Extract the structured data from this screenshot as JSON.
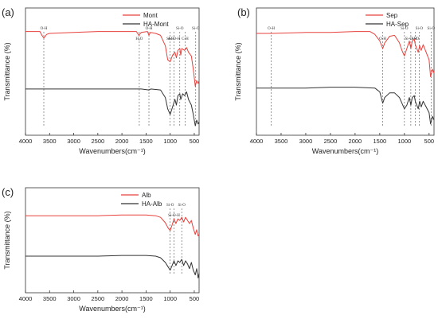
{
  "chart_data": [
    {
      "type": "line",
      "panel_label": "(a)",
      "xlabel": "Wavenumbers(cm⁻¹)",
      "ylabel": "Transmittance (%)",
      "xlim": [
        4000,
        400
      ],
      "x_ticks": [
        4000,
        3500,
        3000,
        2500,
        2000,
        1500,
        1000,
        500
      ],
      "legend_position": "top-right",
      "y_scale": "arbitrary (no tick labels)",
      "series": [
        {
          "name": "Mont",
          "color": "#e8413c",
          "points": [
            [
              4000,
              70
            ],
            [
              3700,
              70
            ],
            [
              3660,
              66
            ],
            [
              3620,
              63
            ],
            [
              3560,
              67
            ],
            [
              3500,
              68
            ],
            [
              3000,
              69
            ],
            [
              2500,
              70
            ],
            [
              2000,
              70
            ],
            [
              1700,
              70
            ],
            [
              1650,
              66
            ],
            [
              1600,
              69
            ],
            [
              1470,
              70
            ],
            [
              1440,
              66
            ],
            [
              1410,
              69
            ],
            [
              1300,
              68
            ],
            [
              1200,
              66
            ],
            [
              1100,
              55
            ],
            [
              1050,
              40
            ],
            [
              1000,
              38
            ],
            [
              950,
              45
            ],
            [
              900,
              48
            ],
            [
              870,
              42
            ],
            [
              840,
              50
            ],
            [
              800,
              52
            ],
            [
              780,
              45
            ],
            [
              760,
              52
            ],
            [
              700,
              50
            ],
            [
              660,
              53
            ],
            [
              620,
              48
            ],
            [
              560,
              44
            ],
            [
              520,
              30
            ],
            [
              480,
              12
            ],
            [
              450,
              18
            ],
            [
              420,
              15
            ],
            [
              400,
              18
            ]
          ]
        },
        {
          "name": "HA-Mont",
          "color": "#333333",
          "points": [
            [
              4000,
              9
            ],
            [
              3500,
              9
            ],
            [
              3000,
              9
            ],
            [
              2500,
              9
            ],
            [
              2000,
              9
            ],
            [
              1650,
              9
            ],
            [
              1600,
              9
            ],
            [
              1440,
              8
            ],
            [
              1400,
              9
            ],
            [
              1200,
              8
            ],
            [
              1100,
              0
            ],
            [
              1050,
              -12
            ],
            [
              1000,
              -18
            ],
            [
              950,
              -10
            ],
            [
              900,
              -2
            ],
            [
              870,
              -8
            ],
            [
              840,
              2
            ],
            [
              800,
              4
            ],
            [
              780,
              -2
            ],
            [
              740,
              4
            ],
            [
              700,
              2
            ],
            [
              660,
              6
            ],
            [
              620,
              -2
            ],
            [
              560,
              -8
            ],
            [
              520,
              -18
            ],
            [
              480,
              -30
            ],
            [
              450,
              -24
            ],
            [
              420,
              -28
            ],
            [
              400,
              -26
            ]
          ]
        }
      ],
      "annotations": [
        {
          "text": "O-H",
          "x": 3620
        },
        {
          "text": "H₂O",
          "x": 1640
        },
        {
          "text": "O-H",
          "x": 1440
        },
        {
          "text": "Si-O",
          "x": 1000
        },
        {
          "text": "Si-O",
          "x": 800
        },
        {
          "text": "C-H",
          "x": 690
        },
        {
          "text": "Si-O",
          "x": 470
        },
        {
          "text": "Al-O-H",
          "x": 920
        }
      ]
    },
    {
      "type": "line",
      "panel_label": "(b)",
      "xlabel": "Wavenumbers(cm⁻¹)",
      "ylabel": "Transmittance (%)",
      "xlim": [
        4000,
        400
      ],
      "x_ticks": [
        4000,
        3500,
        3000,
        2500,
        2000,
        1500,
        1000,
        500
      ],
      "legend_position": "top-right",
      "y_scale": "arbitrary (no tick labels)",
      "series": [
        {
          "name": "Sep",
          "color": "#e8413c",
          "points": [
            [
              4000,
              68
            ],
            [
              3700,
              68
            ],
            [
              3000,
              69
            ],
            [
              2500,
              69
            ],
            [
              2000,
              70
            ],
            [
              1700,
              70
            ],
            [
              1600,
              67
            ],
            [
              1500,
              60
            ],
            [
              1440,
              52
            ],
            [
              1400,
              58
            ],
            [
              1300,
              65
            ],
            [
              1200,
              66
            ],
            [
              1100,
              58
            ],
            [
              1050,
              50
            ],
            [
              1000,
              44
            ],
            [
              950,
              52
            ],
            [
              900,
              60
            ],
            [
              870,
              52
            ],
            [
              840,
              60
            ],
            [
              800,
              62
            ],
            [
              780,
              56
            ],
            [
              720,
              48
            ],
            [
              690,
              55
            ],
            [
              660,
              50
            ],
            [
              620,
              56
            ],
            [
              560,
              48
            ],
            [
              500,
              40
            ],
            [
              470,
              22
            ],
            [
              430,
              30
            ],
            [
              400,
              26
            ]
          ]
        },
        {
          "name": "HA-Sep",
          "color": "#333333",
          "points": [
            [
              4000,
              10
            ],
            [
              3500,
              10
            ],
            [
              3000,
              10
            ],
            [
              2500,
              11
            ],
            [
              2000,
              11
            ],
            [
              1600,
              10
            ],
            [
              1500,
              6
            ],
            [
              1440,
              -6
            ],
            [
              1400,
              0
            ],
            [
              1300,
              5
            ],
            [
              1200,
              5
            ],
            [
              1100,
              0
            ],
            [
              1050,
              -6
            ],
            [
              1000,
              -12
            ],
            [
              950,
              -8
            ],
            [
              900,
              0
            ],
            [
              870,
              -8
            ],
            [
              840,
              0
            ],
            [
              800,
              2
            ],
            [
              780,
              -4
            ],
            [
              720,
              -12
            ],
            [
              690,
              -4
            ],
            [
              660,
              -10
            ],
            [
              620,
              -4
            ],
            [
              560,
              -10
            ],
            [
              500,
              -16
            ],
            [
              470,
              -28
            ],
            [
              430,
              -20
            ],
            [
              400,
              -24
            ]
          ]
        }
      ],
      "annotations": [
        {
          "text": "O-H",
          "x": 3700
        },
        {
          "text": "O-H",
          "x": 1440
        },
        {
          "text": "Si-O",
          "x": 1000
        },
        {
          "text": "Si-O",
          "x": 780
        },
        {
          "text": "Si-O",
          "x": 700
        },
        {
          "text": "Si-O-H",
          "x": 870
        },
        {
          "text": "Si-O",
          "x": 460
        }
      ]
    },
    {
      "type": "line",
      "panel_label": "(c)",
      "xlabel": "Wavenumbers(cm⁻¹)",
      "ylabel": "Transmittance (%)",
      "xlim": [
        4000,
        400
      ],
      "x_ticks": [
        4000,
        3500,
        3000,
        2500,
        2000,
        1500,
        1000,
        500
      ],
      "legend_position": "top-left",
      "y_scale": "arbitrary (no tick labels)",
      "series": [
        {
          "name": "Alb",
          "color": "#e8413c",
          "points": [
            [
              4000,
              54
            ],
            [
              3500,
              54
            ],
            [
              3000,
              54
            ],
            [
              2500,
              54
            ],
            [
              2000,
              55
            ],
            [
              1500,
              55
            ],
            [
              1300,
              54
            ],
            [
              1200,
              52
            ],
            [
              1100,
              45
            ],
            [
              1040,
              38
            ],
            [
              1000,
              35
            ],
            [
              960,
              42
            ],
            [
              920,
              50
            ],
            [
              880,
              44
            ],
            [
              840,
              50
            ],
            [
              800,
              48
            ],
            [
              760,
              52
            ],
            [
              720,
              46
            ],
            [
              680,
              52
            ],
            [
              640,
              48
            ],
            [
              600,
              44
            ],
            [
              560,
              48
            ],
            [
              520,
              38
            ],
            [
              480,
              30
            ],
            [
              450,
              36
            ],
            [
              420,
              28
            ],
            [
              400,
              30
            ]
          ]
        },
        {
          "name": "HA-Alb",
          "color": "#333333",
          "points": [
            [
              4000,
              2
            ],
            [
              3500,
              2
            ],
            [
              3000,
              2
            ],
            [
              2500,
              2
            ],
            [
              2000,
              3
            ],
            [
              1500,
              3
            ],
            [
              1300,
              2
            ],
            [
              1200,
              0
            ],
            [
              1100,
              -6
            ],
            [
              1040,
              -12
            ],
            [
              1000,
              -16
            ],
            [
              960,
              -10
            ],
            [
              920,
              -4
            ],
            [
              880,
              -10
            ],
            [
              840,
              -4
            ],
            [
              800,
              -6
            ],
            [
              760,
              -2
            ],
            [
              720,
              -10
            ],
            [
              680,
              -4
            ],
            [
              640,
              -8
            ],
            [
              600,
              -14
            ],
            [
              560,
              -6
            ],
            [
              520,
              -16
            ],
            [
              480,
              -22
            ],
            [
              450,
              -14
            ],
            [
              420,
              -26
            ],
            [
              400,
              -20
            ]
          ]
        }
      ],
      "annotations": [
        {
          "text": "Si-O",
          "x": 1000
        },
        {
          "text": "Si-O-H",
          "x": 920
        },
        {
          "text": "Si-O",
          "x": 760
        }
      ]
    }
  ]
}
